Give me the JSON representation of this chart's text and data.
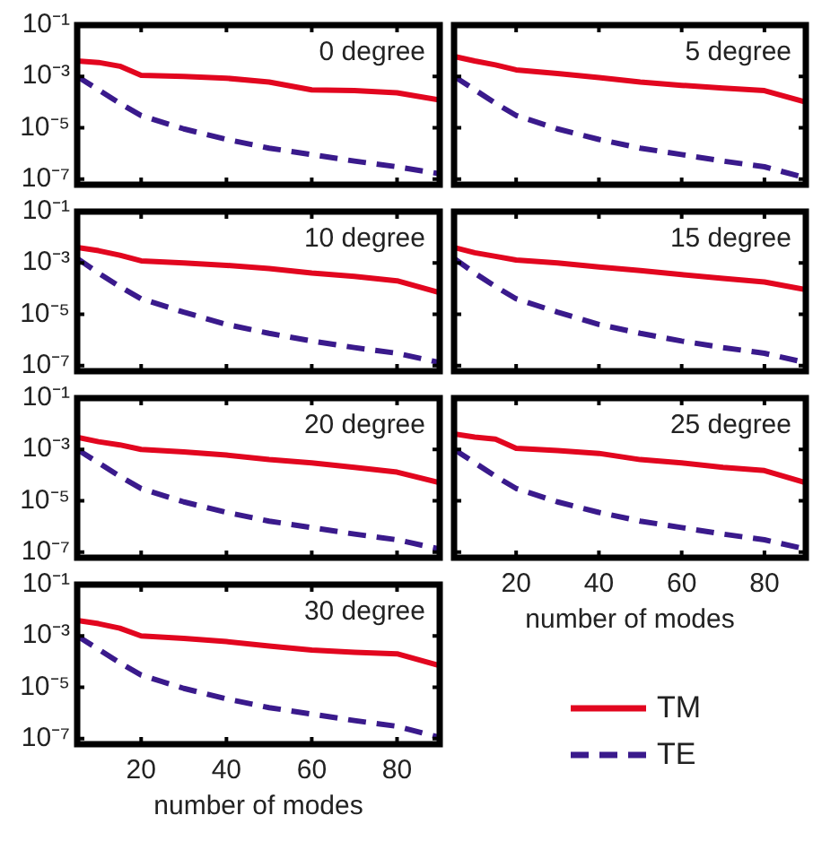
{
  "chart_data": [
    {
      "type": "line",
      "title": "0 degree",
      "x": [
        5,
        10,
        15,
        20,
        30,
        40,
        50,
        60,
        70,
        80,
        90
      ],
      "xlim": [
        5,
        90
      ],
      "xticks": [
        {
          "value": 20,
          "label": null
        },
        {
          "value": 40,
          "label": null
        },
        {
          "value": 60,
          "label": null
        },
        {
          "value": 80,
          "label": null
        }
      ],
      "ylim": [
        6e-08,
        0.1
      ],
      "yticks": [
        {
          "value": 0.1,
          "label": "10⁻¹"
        },
        {
          "value": 0.001,
          "label": "10⁻³"
        },
        {
          "value": 1e-05,
          "label": "10⁻⁵"
        },
        {
          "value": 1e-07,
          "label": "10⁻⁷"
        }
      ],
      "log": "y",
      "marker": "none",
      "tick_labels": "y",
      "series": [
        {
          "color": "#e2061f",
          "line_style": "solid",
          "values": [
            0.004,
            0.0035,
            0.0025,
            0.0011,
            0.001,
            0.00085,
            0.0006,
            0.0003,
            0.00028,
            0.00023,
            0.00012
          ]
        },
        {
          "color": "#3a1a8c",
          "line_style": "dashed",
          "values": [
            0.001,
            0.0003,
            9e-05,
            3e-05,
            9e-06,
            3.5e-06,
            1.6e-06,
            9e-07,
            5e-07,
            3e-07,
            1.6e-07
          ]
        }
      ]
    },
    {
      "type": "line",
      "title": "5 degree",
      "x": [
        5,
        10,
        15,
        20,
        30,
        40,
        50,
        60,
        70,
        80,
        90
      ],
      "xlim": [
        5,
        90
      ],
      "xticks": [
        {
          "value": 20,
          "label": null
        },
        {
          "value": 40,
          "label": null
        },
        {
          "value": 60,
          "label": null
        },
        {
          "value": 80,
          "label": null
        }
      ],
      "ylim": [
        6e-08,
        0.1
      ],
      "yticks": [
        {
          "value": 0.1,
          "label": null
        },
        {
          "value": 0.001,
          "label": null
        },
        {
          "value": 1e-05,
          "label": null
        },
        {
          "value": 1e-07,
          "label": null
        }
      ],
      "log": "y",
      "marker": "none",
      "tick_labels": false,
      "series": [
        {
          "color": "#e2061f",
          "line_style": "solid",
          "values": [
            0.006,
            0.004,
            0.0028,
            0.0018,
            0.0013,
            0.0009,
            0.0006,
            0.00045,
            0.00035,
            0.00028,
            0.0001
          ]
        },
        {
          "color": "#3a1a8c",
          "line_style": "dashed",
          "values": [
            0.001,
            0.0003,
            9e-05,
            3e-05,
            9e-06,
            3.5e-06,
            1.6e-06,
            9e-07,
            5e-07,
            3e-07,
            1.1e-07
          ]
        }
      ]
    },
    {
      "type": "line",
      "title": "10 degree",
      "x": [
        5,
        10,
        15,
        20,
        30,
        40,
        50,
        60,
        70,
        80,
        90
      ],
      "xlim": [
        5,
        90
      ],
      "xticks": [
        {
          "value": 20,
          "label": null
        },
        {
          "value": 40,
          "label": null
        },
        {
          "value": 60,
          "label": null
        },
        {
          "value": 80,
          "label": null
        }
      ],
      "ylim": [
        6e-08,
        0.1
      ],
      "yticks": [
        {
          "value": 0.1,
          "label": "10⁻¹"
        },
        {
          "value": 0.001,
          "label": "10⁻³"
        },
        {
          "value": 1e-05,
          "label": "10⁻⁵"
        },
        {
          "value": 1e-07,
          "label": "10⁻⁷"
        }
      ],
      "log": "y",
      "marker": "none",
      "tick_labels": "y",
      "series": [
        {
          "color": "#e2061f",
          "line_style": "solid",
          "values": [
            0.004,
            0.003,
            0.002,
            0.0012,
            0.001,
            0.0008,
            0.0006,
            0.0004,
            0.0003,
            0.0002,
            7e-05
          ]
        },
        {
          "color": "#3a1a8c",
          "line_style": "dashed",
          "values": [
            0.0015,
            0.0004,
            0.00012,
            4e-05,
            1.2e-05,
            4e-06,
            1.8e-06,
            9e-07,
            5e-07,
            3e-07,
            1.3e-07
          ]
        }
      ]
    },
    {
      "type": "line",
      "title": "15 degree",
      "x": [
        5,
        10,
        15,
        20,
        30,
        40,
        50,
        60,
        70,
        80,
        90
      ],
      "xlim": [
        5,
        90
      ],
      "xticks": [
        {
          "value": 20,
          "label": null
        },
        {
          "value": 40,
          "label": null
        },
        {
          "value": 60,
          "label": null
        },
        {
          "value": 80,
          "label": null
        }
      ],
      "ylim": [
        6e-08,
        0.1
      ],
      "yticks": [
        {
          "value": 0.1,
          "label": null
        },
        {
          "value": 0.001,
          "label": null
        },
        {
          "value": 1e-05,
          "label": null
        },
        {
          "value": 1e-07,
          "label": null
        }
      ],
      "log": "y",
      "marker": "none",
      "tick_labels": false,
      "series": [
        {
          "color": "#e2061f",
          "line_style": "solid",
          "values": [
            0.004,
            0.0025,
            0.0018,
            0.0013,
            0.001,
            0.0007,
            0.0005,
            0.00035,
            0.00025,
            0.00018,
            9e-05
          ]
        },
        {
          "color": "#3a1a8c",
          "line_style": "dashed",
          "values": [
            0.0015,
            0.0004,
            0.00012,
            4e-05,
            1.2e-05,
            4e-06,
            1.8e-06,
            9e-07,
            5e-07,
            3e-07,
            1.3e-07
          ]
        }
      ]
    },
    {
      "type": "line",
      "title": "20 degree",
      "x": [
        5,
        10,
        15,
        20,
        30,
        40,
        50,
        60,
        70,
        80,
        90
      ],
      "xlim": [
        5,
        90
      ],
      "xticks": [
        {
          "value": 20,
          "label": null
        },
        {
          "value": 40,
          "label": null
        },
        {
          "value": 60,
          "label": null
        },
        {
          "value": 80,
          "label": null
        }
      ],
      "ylim": [
        6e-08,
        0.1
      ],
      "yticks": [
        {
          "value": 0.1,
          "label": "10⁻¹"
        },
        {
          "value": 0.001,
          "label": "10⁻³"
        },
        {
          "value": 1e-05,
          "label": "10⁻⁵"
        },
        {
          "value": 1e-07,
          "label": "10⁻⁷"
        }
      ],
      "log": "y",
      "marker": "none",
      "tick_labels": "y",
      "series": [
        {
          "color": "#e2061f",
          "line_style": "solid",
          "values": [
            0.003,
            0.002,
            0.0015,
            0.001,
            0.0008,
            0.0006,
            0.0004,
            0.0003,
            0.0002,
            0.00013,
            5e-05
          ]
        },
        {
          "color": "#3a1a8c",
          "line_style": "dashed",
          "values": [
            0.001,
            0.0003,
            9e-05,
            3e-05,
            9e-06,
            3.5e-06,
            1.6e-06,
            9e-07,
            5e-07,
            3e-07,
            1.3e-07
          ]
        }
      ]
    },
    {
      "type": "line",
      "title": "25 degree",
      "xlabel": "number of modes",
      "x": [
        5,
        10,
        15,
        20,
        30,
        40,
        50,
        60,
        70,
        80,
        90
      ],
      "xlim": [
        5,
        90
      ],
      "xticks": [
        20,
        40,
        60,
        80
      ],
      "ylim": [
        6e-08,
        0.1
      ],
      "yticks": [
        {
          "value": 0.1,
          "label": null
        },
        {
          "value": 0.001,
          "label": null
        },
        {
          "value": 1e-05,
          "label": null
        },
        {
          "value": 1e-07,
          "label": null
        }
      ],
      "log": "y",
      "marker": "none",
      "tick_labels": "x",
      "series": [
        {
          "color": "#e2061f",
          "line_style": "solid",
          "values": [
            0.004,
            0.003,
            0.0025,
            0.0011,
            0.0009,
            0.0007,
            0.0004,
            0.0003,
            0.0002,
            0.00015,
            5e-05
          ]
        },
        {
          "color": "#3a1a8c",
          "line_style": "dashed",
          "values": [
            0.001,
            0.0003,
            9e-05,
            3e-05,
            9e-06,
            3.5e-06,
            1.6e-06,
            9e-07,
            5e-07,
            3e-07,
            1.3e-07
          ]
        }
      ]
    },
    {
      "type": "line",
      "title": "30 degree",
      "xlabel": "number of modes",
      "x": [
        5,
        10,
        15,
        20,
        30,
        40,
        50,
        60,
        70,
        80,
        90
      ],
      "xlim": [
        5,
        90
      ],
      "xticks": [
        20,
        40,
        60,
        80
      ],
      "ylim": [
        6e-08,
        0.1
      ],
      "yticks": [
        {
          "value": 0.1,
          "label": "10⁻¹"
        },
        {
          "value": 0.001,
          "label": "10⁻³"
        },
        {
          "value": 1e-05,
          "label": "10⁻⁵"
        },
        {
          "value": 1e-07,
          "label": "10⁻⁷"
        }
      ],
      "log": "y",
      "marker": "none",
      "legend": "right",
      "series": [
        {
          "name": "TM",
          "color": "#e2061f",
          "line_style": "solid",
          "values": [
            0.004,
            0.003,
            0.002,
            0.001,
            0.0008,
            0.0006,
            0.0004,
            0.00028,
            0.00023,
            0.0002,
            7e-05
          ]
        },
        {
          "name": "TE",
          "color": "#3a1a8c",
          "line_style": "dashed",
          "values": [
            0.001,
            0.0003,
            9e-05,
            3e-05,
            9e-06,
            3.5e-06,
            1.6e-06,
            9e-07,
            5e-07,
            3e-07,
            1.1e-07
          ]
        }
      ]
    }
  ]
}
